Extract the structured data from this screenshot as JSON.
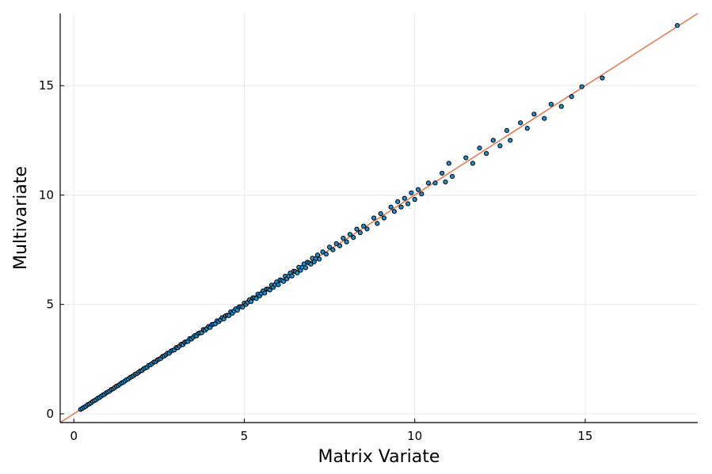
{
  "chart_data": {
    "type": "scatter",
    "title": "",
    "xlabel": "Matrix Variate",
    "ylabel": "Multivariate",
    "xlim": [
      -0.4,
      18.3
    ],
    "ylim": [
      -0.4,
      18.3
    ],
    "x_ticks": [
      0,
      5,
      10,
      15
    ],
    "y_ticks": [
      0,
      5,
      10,
      15
    ],
    "x_tick_labels": [
      "0",
      "5",
      "10",
      "15"
    ],
    "y_tick_labels": [
      "0",
      "5",
      "10",
      "15"
    ],
    "grid": true,
    "legend": "none",
    "colors": {
      "points": "#1f8fd0",
      "point_edge": "#000000",
      "reference_line": "#e07b54"
    },
    "reference_line": {
      "slope": 1,
      "intercept": 0
    },
    "series": [
      {
        "values": [
          [
            0.2,
            0.2
          ],
          [
            0.25,
            0.25
          ],
          [
            0.3,
            0.3
          ],
          [
            0.35,
            0.34
          ],
          [
            0.4,
            0.41
          ],
          [
            0.45,
            0.45
          ],
          [
            0.5,
            0.49
          ],
          [
            0.55,
            0.56
          ],
          [
            0.6,
            0.6
          ],
          [
            0.65,
            0.64
          ],
          [
            0.7,
            0.71
          ],
          [
            0.75,
            0.74
          ],
          [
            0.8,
            0.8
          ],
          [
            0.85,
            0.86
          ],
          [
            0.9,
            0.89
          ],
          [
            0.95,
            0.96
          ],
          [
            1.0,
            1.0
          ],
          [
            1.05,
            1.04
          ],
          [
            1.1,
            1.11
          ],
          [
            1.15,
            1.14
          ],
          [
            1.2,
            1.2
          ],
          [
            1.25,
            1.26
          ],
          [
            1.3,
            1.29
          ],
          [
            1.35,
            1.35
          ],
          [
            1.4,
            1.41
          ],
          [
            1.45,
            1.44
          ],
          [
            1.5,
            1.5
          ],
          [
            1.55,
            1.56
          ],
          [
            1.6,
            1.59
          ],
          [
            1.65,
            1.66
          ],
          [
            1.7,
            1.7
          ],
          [
            1.75,
            1.74
          ],
          [
            1.8,
            1.81
          ],
          [
            1.85,
            1.84
          ],
          [
            1.9,
            1.9
          ],
          [
            1.95,
            1.96
          ],
          [
            2.0,
            1.98
          ],
          [
            2.05,
            2.06
          ],
          [
            2.1,
            2.1
          ],
          [
            2.15,
            2.13
          ],
          [
            2.2,
            2.22
          ],
          [
            2.25,
            2.24
          ],
          [
            2.3,
            2.3
          ],
          [
            2.35,
            2.37
          ],
          [
            2.4,
            2.38
          ],
          [
            2.45,
            2.46
          ],
          [
            2.5,
            2.5
          ],
          [
            2.55,
            2.53
          ],
          [
            2.6,
            2.62
          ],
          [
            2.65,
            2.64
          ],
          [
            2.7,
            2.7
          ],
          [
            2.75,
            2.77
          ],
          [
            2.8,
            2.77
          ],
          [
            2.85,
            2.87
          ],
          [
            2.9,
            2.9
          ],
          [
            2.95,
            2.92
          ],
          [
            3.0,
            3.03
          ],
          [
            3.05,
            3.02
          ],
          [
            3.1,
            3.1
          ],
          [
            3.15,
            3.18
          ],
          [
            3.2,
            3.16
          ],
          [
            3.25,
            3.27
          ],
          [
            3.3,
            3.3
          ],
          [
            3.35,
            3.31
          ],
          [
            3.4,
            3.44
          ],
          [
            3.45,
            3.42
          ],
          [
            3.5,
            3.5
          ],
          [
            3.55,
            3.58
          ],
          [
            3.6,
            3.56
          ],
          [
            3.65,
            3.67
          ],
          [
            3.7,
            3.7
          ],
          [
            3.75,
            3.71
          ],
          [
            3.8,
            3.85
          ],
          [
            3.85,
            3.82
          ],
          [
            3.9,
            3.9
          ],
          [
            3.95,
            3.99
          ],
          [
            4.0,
            3.95
          ],
          [
            4.05,
            4.08
          ],
          [
            4.1,
            4.1
          ],
          [
            4.15,
            4.11
          ],
          [
            4.2,
            4.25
          ],
          [
            4.25,
            4.21
          ],
          [
            4.3,
            4.3
          ],
          [
            4.35,
            4.4
          ],
          [
            4.4,
            4.34
          ],
          [
            4.45,
            4.48
          ],
          [
            4.5,
            4.5
          ],
          [
            4.55,
            4.49
          ],
          [
            4.6,
            4.66
          ],
          [
            4.65,
            4.6
          ],
          [
            4.7,
            4.7
          ],
          [
            4.75,
            4.8
          ],
          [
            4.8,
            4.74
          ],
          [
            4.85,
            4.89
          ],
          [
            4.9,
            4.9
          ],
          [
            4.95,
            4.88
          ],
          [
            5.0,
            5.06
          ],
          [
            5.05,
            5.0
          ],
          [
            5.1,
            5.1
          ],
          [
            5.15,
            5.21
          ],
          [
            5.2,
            5.13
          ],
          [
            5.25,
            5.3
          ],
          [
            5.3,
            5.3
          ],
          [
            5.35,
            5.27
          ],
          [
            5.4,
            5.47
          ],
          [
            5.45,
            5.39
          ],
          [
            5.5,
            5.5
          ],
          [
            5.55,
            5.62
          ],
          [
            5.6,
            5.52
          ],
          [
            5.65,
            5.7
          ],
          [
            5.7,
            5.7
          ],
          [
            5.75,
            5.66
          ],
          [
            5.8,
            5.88
          ],
          [
            5.85,
            5.78
          ],
          [
            5.9,
            5.9
          ],
          [
            5.95,
            6.03
          ],
          [
            6.0,
            5.9
          ],
          [
            6.05,
            6.12
          ],
          [
            6.1,
            6.1
          ],
          [
            6.15,
            6.05
          ],
          [
            6.2,
            6.29
          ],
          [
            6.25,
            6.17
          ],
          [
            6.3,
            6.3
          ],
          [
            6.35,
            6.44
          ],
          [
            6.4,
            6.3
          ],
          [
            6.45,
            6.52
          ],
          [
            6.5,
            6.5
          ],
          [
            6.55,
            6.44
          ],
          [
            6.6,
            6.7
          ],
          [
            6.65,
            6.56
          ],
          [
            6.7,
            6.7
          ],
          [
            6.75,
            6.85
          ],
          [
            6.8,
            6.68
          ],
          [
            6.85,
            6.93
          ],
          [
            6.9,
            6.9
          ],
          [
            6.95,
            6.84
          ],
          [
            7.0,
            7.11
          ],
          [
            7.05,
            6.95
          ],
          [
            7.1,
            7.1
          ],
          [
            7.15,
            7.26
          ],
          [
            7.2,
            7.07
          ],
          [
            7.3,
            7.4
          ],
          [
            7.4,
            7.3
          ],
          [
            7.5,
            7.62
          ],
          [
            7.6,
            7.5
          ],
          [
            7.7,
            7.78
          ],
          [
            7.8,
            7.68
          ],
          [
            7.9,
            8.03
          ],
          [
            8.0,
            7.86
          ],
          [
            8.1,
            8.2
          ],
          [
            8.2,
            8.06
          ],
          [
            8.3,
            8.44
          ],
          [
            8.4,
            8.28
          ],
          [
            8.5,
            8.58
          ],
          [
            8.6,
            8.45
          ],
          [
            8.8,
            8.95
          ],
          [
            8.9,
            8.7
          ],
          [
            9.0,
            9.15
          ],
          [
            9.1,
            8.95
          ],
          [
            9.3,
            9.45
          ],
          [
            9.4,
            9.25
          ],
          [
            9.5,
            9.7
          ],
          [
            9.6,
            9.45
          ],
          [
            9.7,
            9.85
          ],
          [
            9.8,
            9.6
          ],
          [
            9.9,
            10.1
          ],
          [
            10.0,
            9.8
          ],
          [
            10.1,
            10.25
          ],
          [
            10.2,
            10.05
          ],
          [
            10.4,
            10.55
          ],
          [
            10.6,
            10.55
          ],
          [
            10.8,
            11.0
          ],
          [
            10.9,
            10.6
          ],
          [
            11.0,
            11.45
          ],
          [
            11.1,
            10.85
          ],
          [
            11.5,
            11.7
          ],
          [
            11.7,
            11.45
          ],
          [
            11.9,
            12.15
          ],
          [
            12.1,
            11.9
          ],
          [
            12.3,
            12.5
          ],
          [
            12.5,
            12.25
          ],
          [
            12.7,
            12.95
          ],
          [
            12.8,
            12.5
          ],
          [
            13.1,
            13.3
          ],
          [
            13.3,
            13.05
          ],
          [
            13.5,
            13.7
          ],
          [
            13.8,
            13.5
          ],
          [
            14.0,
            14.15
          ],
          [
            14.3,
            14.05
          ],
          [
            14.6,
            14.5
          ],
          [
            14.9,
            14.95
          ],
          [
            15.5,
            15.35
          ],
          [
            17.7,
            17.75
          ]
        ]
      }
    ]
  }
}
